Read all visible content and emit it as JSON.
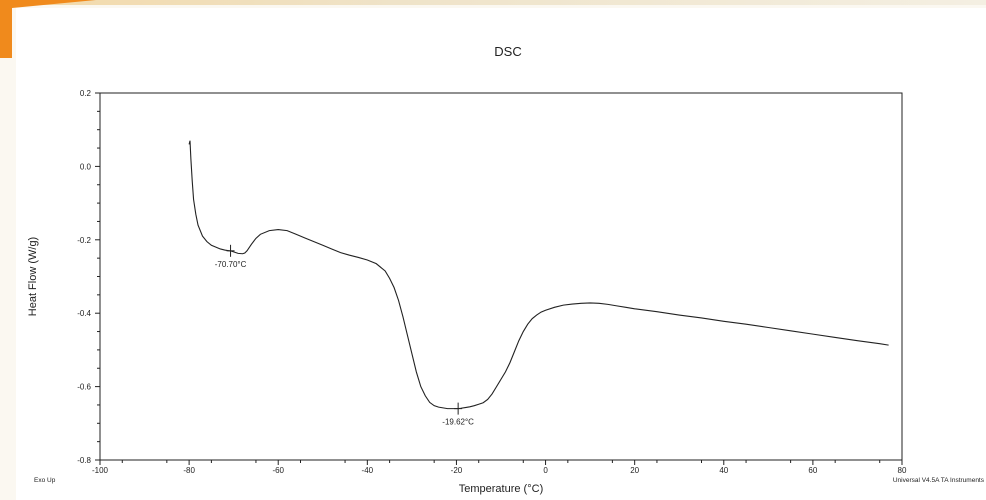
{
  "chart_data": {
    "type": "line",
    "title": "DSC",
    "xlabel": "Temperature (°C)",
    "ylabel": "Heat Flow (W/g)",
    "xlim": [
      -100,
      80
    ],
    "ylim": [
      -0.8,
      0.2
    ],
    "xticks": [
      -100,
      -80,
      -60,
      -40,
      -20,
      0,
      20,
      40,
      60,
      80
    ],
    "yticks": [
      0.2,
      0.0,
      -0.2,
      -0.4,
      -0.6,
      -0.8
    ],
    "xtick_labels": [
      "-100",
      "-80",
      "-60",
      "-40",
      "-20",
      "0",
      "20",
      "40",
      "60",
      "80"
    ],
    "ytick_labels": [
      "0.2",
      "0.0",
      "-0.2",
      "-0.4",
      "-0.6",
      "-0.8"
    ],
    "grid": false,
    "series": [
      {
        "x": [
          -80.0,
          -79.8,
          -79.6,
          -79.3,
          -79.0,
          -78.5,
          -78.0,
          -77.0,
          -76.0,
          -75.0,
          -74.0,
          -73.0,
          -72.0,
          -71.0,
          -70.7,
          -70.0,
          -69.0,
          -68.0,
          -67.5,
          -67.0,
          -66.0,
          -65.0,
          -64.0,
          -62.0,
          -60.0,
          -58.0,
          -56.0,
          -54.0,
          -52.0,
          -50.0,
          -48.0,
          -46.0,
          -44.0,
          -42.0,
          -40.0,
          -38.0,
          -36.0,
          -35.0,
          -34.0,
          -33.0,
          -32.0,
          -31.0,
          -30.0,
          -29.0,
          -28.0,
          -27.0,
          -26.0,
          -25.0,
          -24.0,
          -23.0,
          -22.0,
          -21.0,
          -20.0,
          -19.62,
          -19.0,
          -18.0,
          -17.0,
          -16.0,
          -15.0,
          -14.0,
          -13.0,
          -12.0,
          -11.0,
          -10.0,
          -9.0,
          -8.0,
          -7.0,
          -6.0,
          -5.0,
          -4.0,
          -3.0,
          -2.0,
          -1.0,
          0.0,
          2.0,
          4.0,
          6.0,
          8.0,
          10.0,
          12.0,
          14.0,
          16.0,
          18.0,
          20.0,
          25.0,
          30.0,
          35.0,
          40.0,
          45.0,
          50.0,
          55.0,
          60.0,
          65.0,
          70.0,
          75.0,
          77.0
        ],
        "y": [
          0.06,
          0.07,
          0.02,
          -0.04,
          -0.09,
          -0.13,
          -0.16,
          -0.19,
          -0.205,
          -0.215,
          -0.22,
          -0.225,
          -0.228,
          -0.23,
          -0.23,
          -0.233,
          -0.237,
          -0.238,
          -0.236,
          -0.23,
          -0.212,
          -0.196,
          -0.185,
          -0.175,
          -0.172,
          -0.175,
          -0.185,
          -0.195,
          -0.205,
          -0.215,
          -0.225,
          -0.235,
          -0.242,
          -0.248,
          -0.255,
          -0.265,
          -0.285,
          -0.305,
          -0.33,
          -0.365,
          -0.41,
          -0.46,
          -0.51,
          -0.56,
          -0.6,
          -0.625,
          -0.643,
          -0.652,
          -0.656,
          -0.658,
          -0.66,
          -0.66,
          -0.66,
          -0.66,
          -0.659,
          -0.657,
          -0.655,
          -0.652,
          -0.648,
          -0.644,
          -0.635,
          -0.62,
          -0.6,
          -0.58,
          -0.56,
          -0.535,
          -0.505,
          -0.475,
          -0.45,
          -0.43,
          -0.415,
          -0.405,
          -0.397,
          -0.392,
          -0.384,
          -0.378,
          -0.375,
          -0.373,
          -0.372,
          -0.373,
          -0.376,
          -0.38,
          -0.384,
          -0.388,
          -0.396,
          -0.405,
          -0.413,
          -0.422,
          -0.43,
          -0.439,
          -0.448,
          -0.457,
          -0.466,
          -0.475,
          -0.483,
          -0.487
        ]
      }
    ],
    "annotations": [
      {
        "text": "-70.70°C",
        "x": -70.7,
        "y": -0.23
      },
      {
        "text": "-19.62°C",
        "x": -19.62,
        "y": -0.66
      }
    ],
    "footer_left": "Exo Up",
    "footer_right": "Universal V4.5A TA Instruments"
  }
}
